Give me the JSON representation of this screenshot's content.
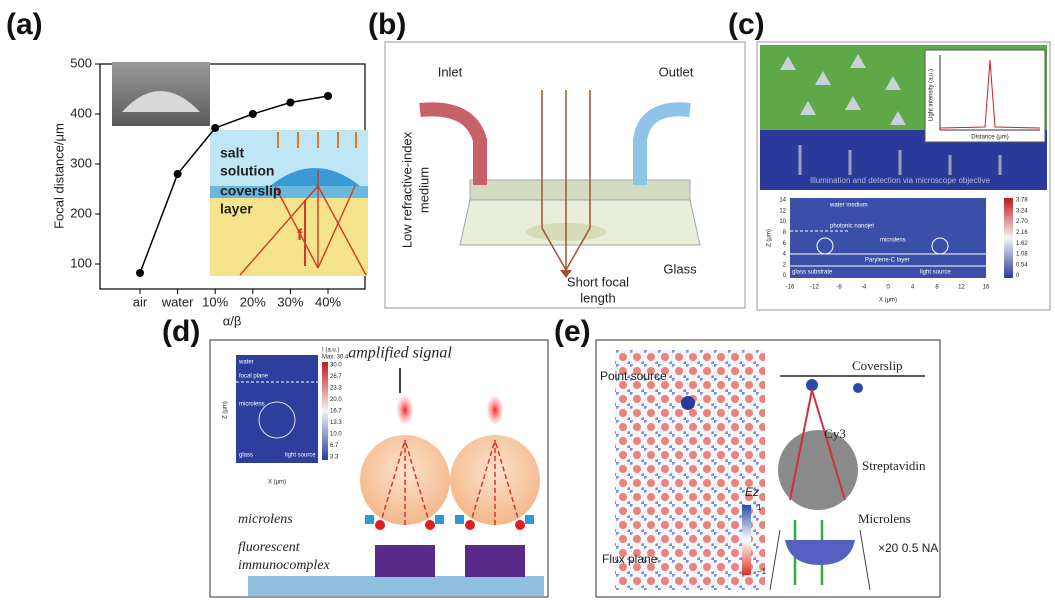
{
  "panel_labels": [
    "(a)",
    "(b)",
    "(c)",
    "(d)",
    "(e)"
  ],
  "chart_data": {
    "type": "line",
    "y_label": "Focal distance/μm",
    "x_label": "α/β",
    "categories": [
      "air",
      "water",
      "10%",
      "20%",
      "30%",
      "40%"
    ],
    "values": [
      82,
      280,
      372,
      400,
      423,
      436
    ],
    "color": "#000000",
    "ylim": [
      50,
      500
    ],
    "yticks": [
      100,
      200,
      300,
      400,
      500
    ]
  },
  "panel_a": {
    "inset_labels": [
      "salt",
      "solution",
      "coverslip",
      "layer",
      "f"
    ]
  },
  "panel_b": {
    "inlet": "Inlet",
    "outlet": "Outlet",
    "medium": [
      "Low refractive-index",
      "medium"
    ],
    "glass": "Glass",
    "focal": [
      "Short focal",
      "length"
    ]
  },
  "panel_c": {
    "banner": "Illumination and detection via microscope objective",
    "layers": [
      "water medium",
      "photonic nanojet",
      "microlens",
      "Parylene-C layer",
      "glass substrate",
      "light source"
    ],
    "z_label": "Z (μm)",
    "x_label": "X (μm)",
    "z_ticks": [
      "14",
      "12",
      "10",
      "8",
      "6",
      "4",
      "2",
      "0"
    ],
    "x_ticks": [
      "-16",
      "-12",
      "-8",
      "-4",
      "0",
      "4",
      "8",
      "12",
      "16"
    ],
    "colorbar": [
      "3.78",
      "3.24",
      "2.70",
      "2.16",
      "1.62",
      "1.08",
      "0.54",
      "0"
    ],
    "inset_y_label": "Light intensity (a.u.)",
    "inset_x_label": "Distance (μm)"
  },
  "panel_d": {
    "signal": "amplified signal",
    "microlens": "microlens",
    "complex": [
      "fluorescent",
      "immunocomplex"
    ],
    "inset_labels": [
      "water",
      "focal plane",
      "microlens",
      "glass",
      "light source"
    ],
    "z_label": "Z (μm)",
    "x_label": "X (μm)",
    "cb_title": "I (a.u.)",
    "cb_max": "Max: 30.4",
    "colorbar": [
      "30.0",
      "26.7",
      "23.3",
      "20.0",
      "16.7",
      "13.3",
      "10.0",
      "6.7",
      "3.3"
    ]
  },
  "panel_e": {
    "point": "Point source",
    "flux": "Flux plane",
    "coverslip": "Coverslip",
    "cy3": "Cy3",
    "streptavidin": "Streptavidin",
    "microlens": "Microlens",
    "objective": "×20 0.5 NA",
    "field": "Ez",
    "cb": [
      "1",
      "−1"
    ]
  }
}
